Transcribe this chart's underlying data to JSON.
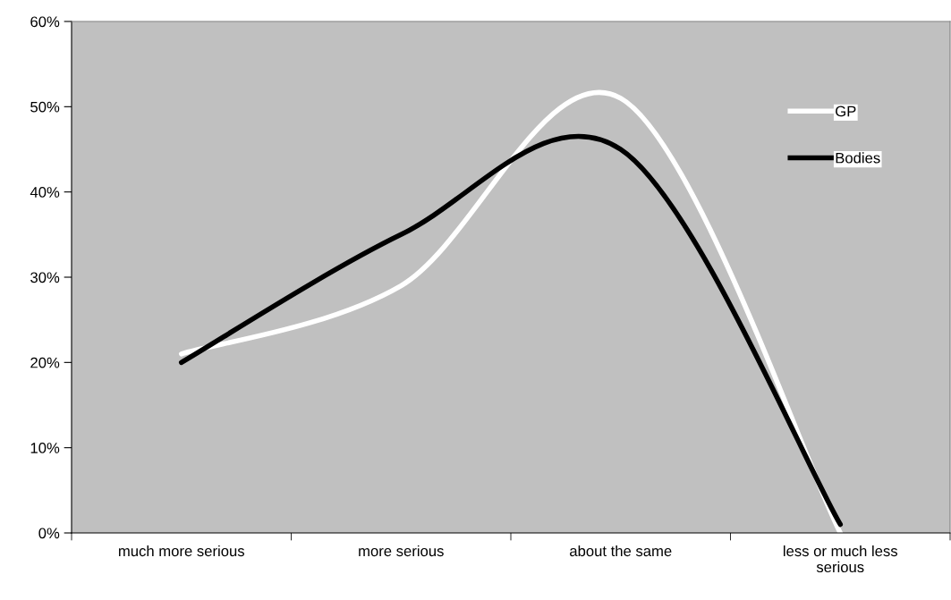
{
  "chart_data": {
    "type": "line",
    "categories": [
      "much more serious",
      "more serious",
      "about the same",
      "less or much less serious"
    ],
    "series": [
      {
        "name": "GP",
        "color": "#ffffff",
        "values": [
          21,
          29,
          51,
          0
        ]
      },
      {
        "name": "Bodies",
        "color": "#000000",
        "values": [
          20,
          35,
          45,
          1
        ]
      }
    ],
    "ylim": [
      0,
      60
    ],
    "yticks": [
      {
        "value": 0,
        "label": "0%"
      },
      {
        "value": 10,
        "label": "10%"
      },
      {
        "value": 20,
        "label": "20%"
      },
      {
        "value": 30,
        "label": "30%"
      },
      {
        "value": 40,
        "label": "40%"
      },
      {
        "value": 50,
        "label": "50%"
      },
      {
        "value": 60,
        "label": "60%"
      }
    ],
    "grid": false,
    "legend": "top right",
    "marker": "none",
    "line_style": "solid"
  }
}
